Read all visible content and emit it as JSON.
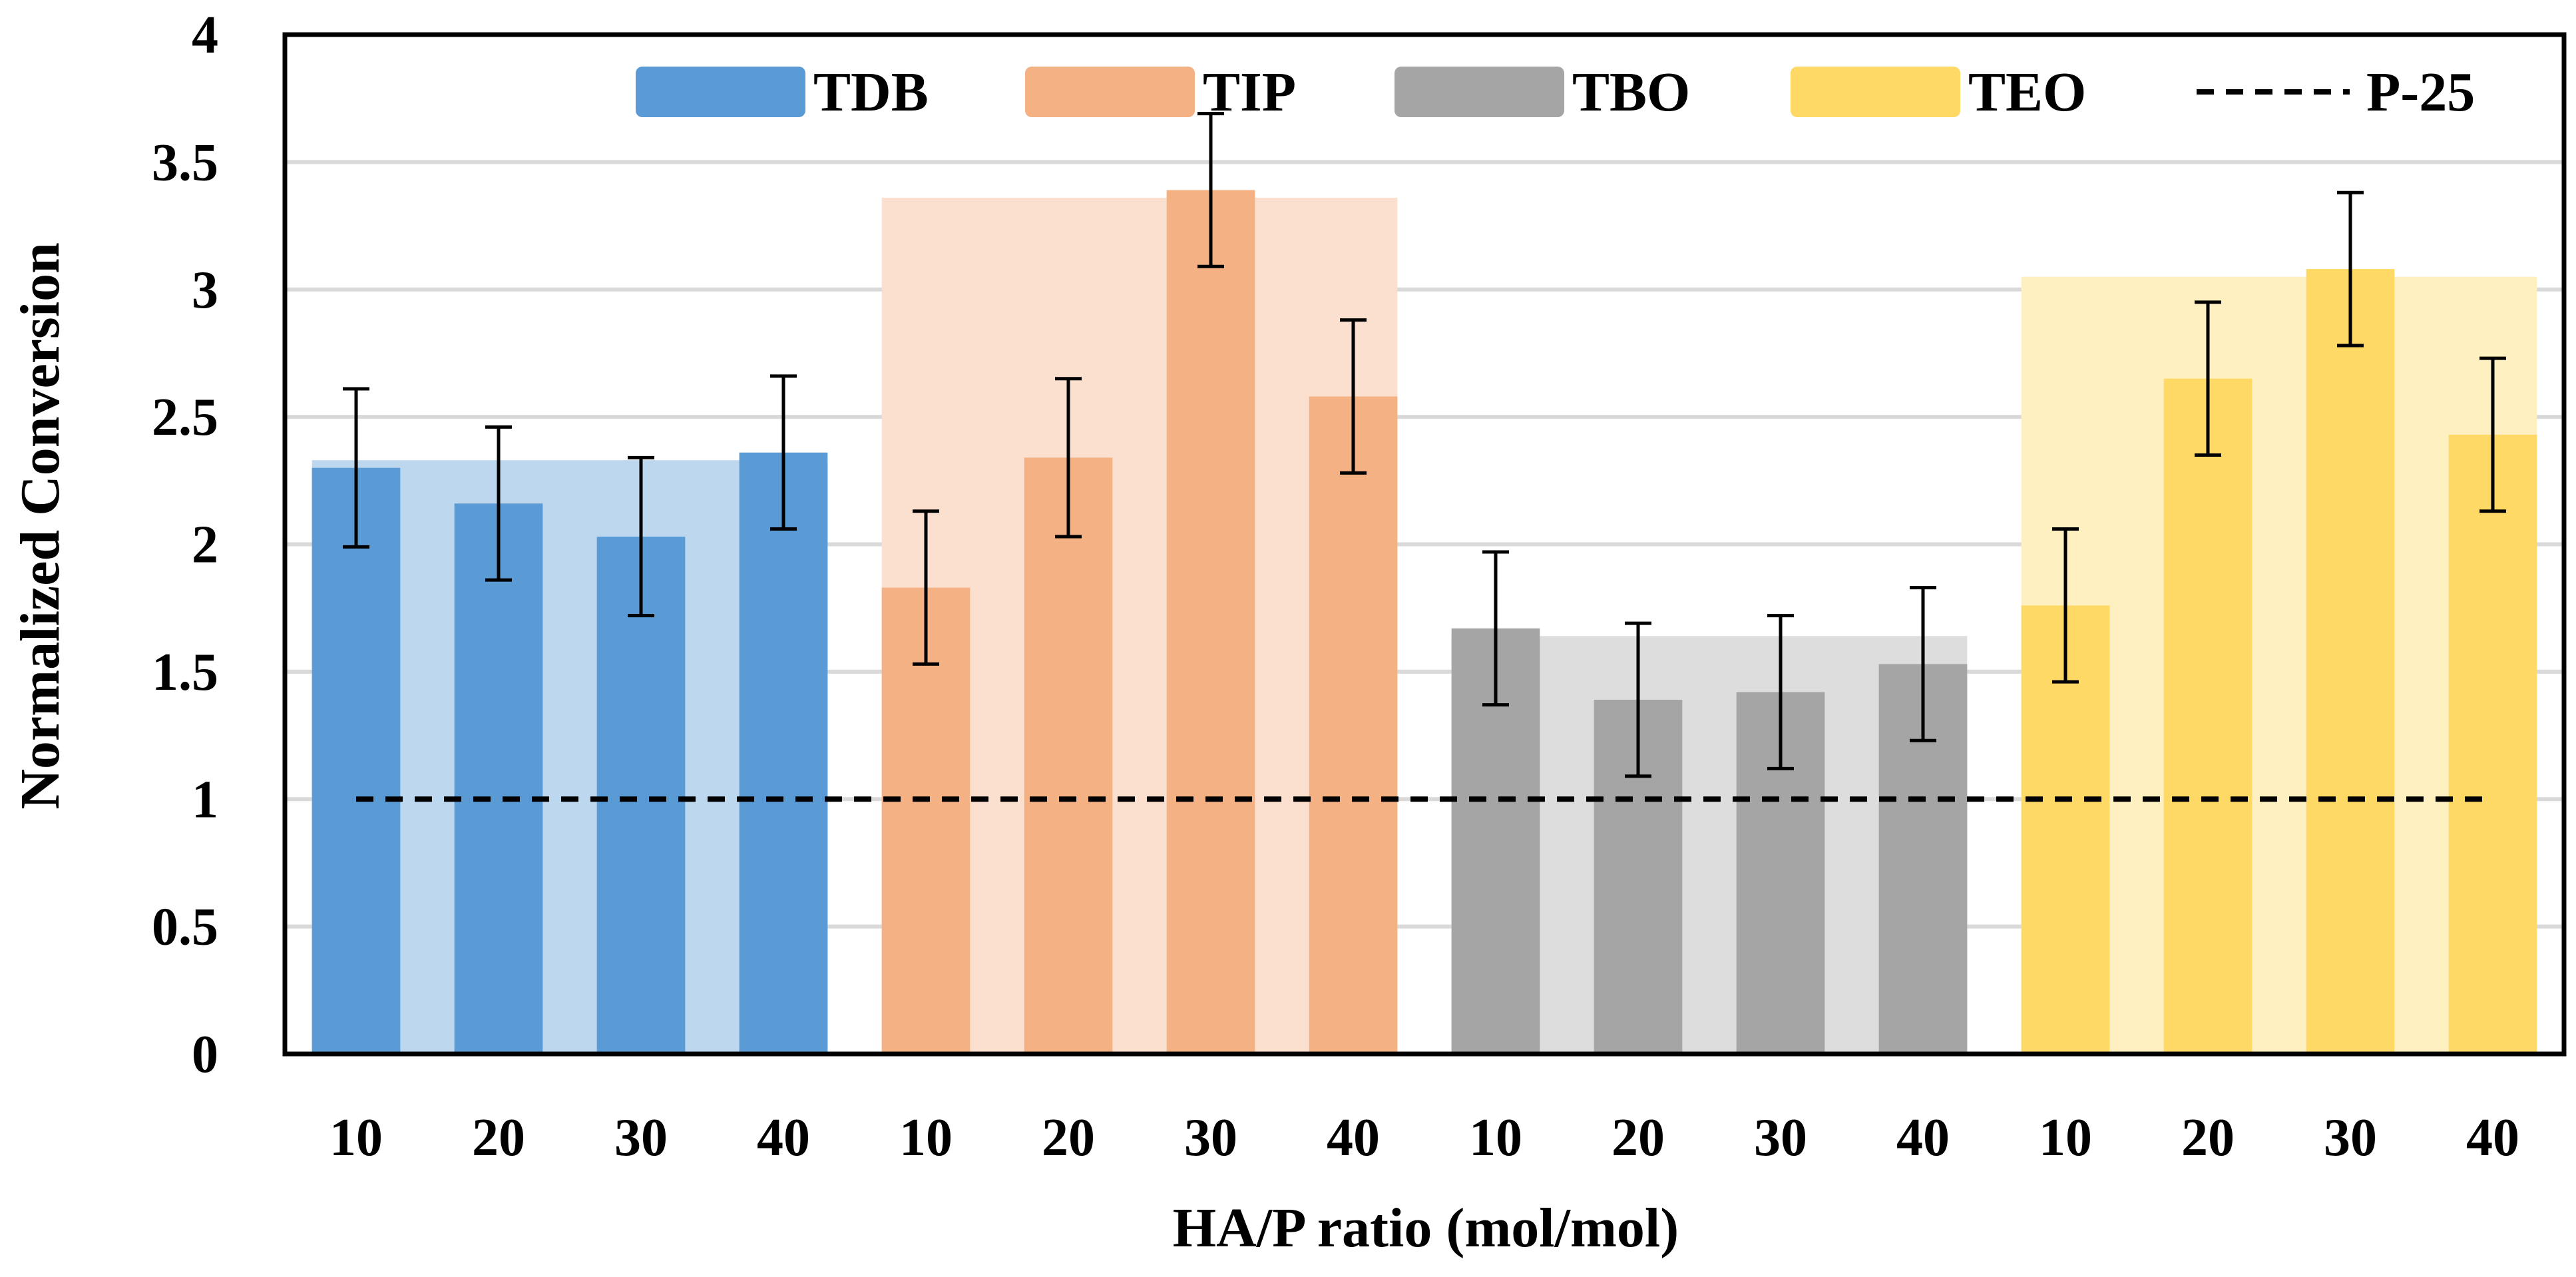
{
  "chart_data": {
    "type": "bar",
    "title": "",
    "xlabel": "HA/P ratio (mol/mol)",
    "ylabel": "Normalized Conversion",
    "ylim": [
      0,
      4
    ],
    "yticks": [
      0,
      0.5,
      1,
      1.5,
      2,
      2.5,
      3,
      3.5,
      4
    ],
    "ytick_labels": [
      "0",
      "0.5",
      "1",
      "1.5",
      "2",
      "2.5",
      "3",
      "3.5",
      "4"
    ],
    "grid": true,
    "legend_position": "top",
    "categories": [
      "10",
      "20",
      "30",
      "40"
    ],
    "series": [
      {
        "name": "TDB",
        "color": "#5B9BD5",
        "light_color": "#BDD7EE",
        "values": [
          2.3,
          2.16,
          2.03,
          2.36
        ],
        "errors": [
          0.31,
          0.3,
          0.31,
          0.3
        ],
        "group_level": 2.33
      },
      {
        "name": "TIP",
        "color": "#F4B183",
        "light_color": "#FBE0D0",
        "values": [
          1.83,
          2.34,
          3.39,
          2.58
        ],
        "errors": [
          0.3,
          0.31,
          0.3,
          0.3
        ],
        "group_level": 3.36
      },
      {
        "name": "TBO",
        "color": "#A5A5A5",
        "light_color": "#DDDDDD",
        "values": [
          1.67,
          1.39,
          1.42,
          1.53
        ],
        "errors": [
          0.3,
          0.3,
          0.3,
          0.3
        ],
        "group_level": 1.64
      },
      {
        "name": "TEO",
        "color": "#FFD966",
        "light_color": "#FFF0C1",
        "values": [
          1.76,
          2.65,
          3.08,
          2.43
        ],
        "errors": [
          0.3,
          0.3,
          0.3,
          0.3
        ],
        "group_level": 3.05
      }
    ],
    "reference_line": {
      "name": "P-25",
      "value": 1,
      "color": "#000000"
    }
  }
}
